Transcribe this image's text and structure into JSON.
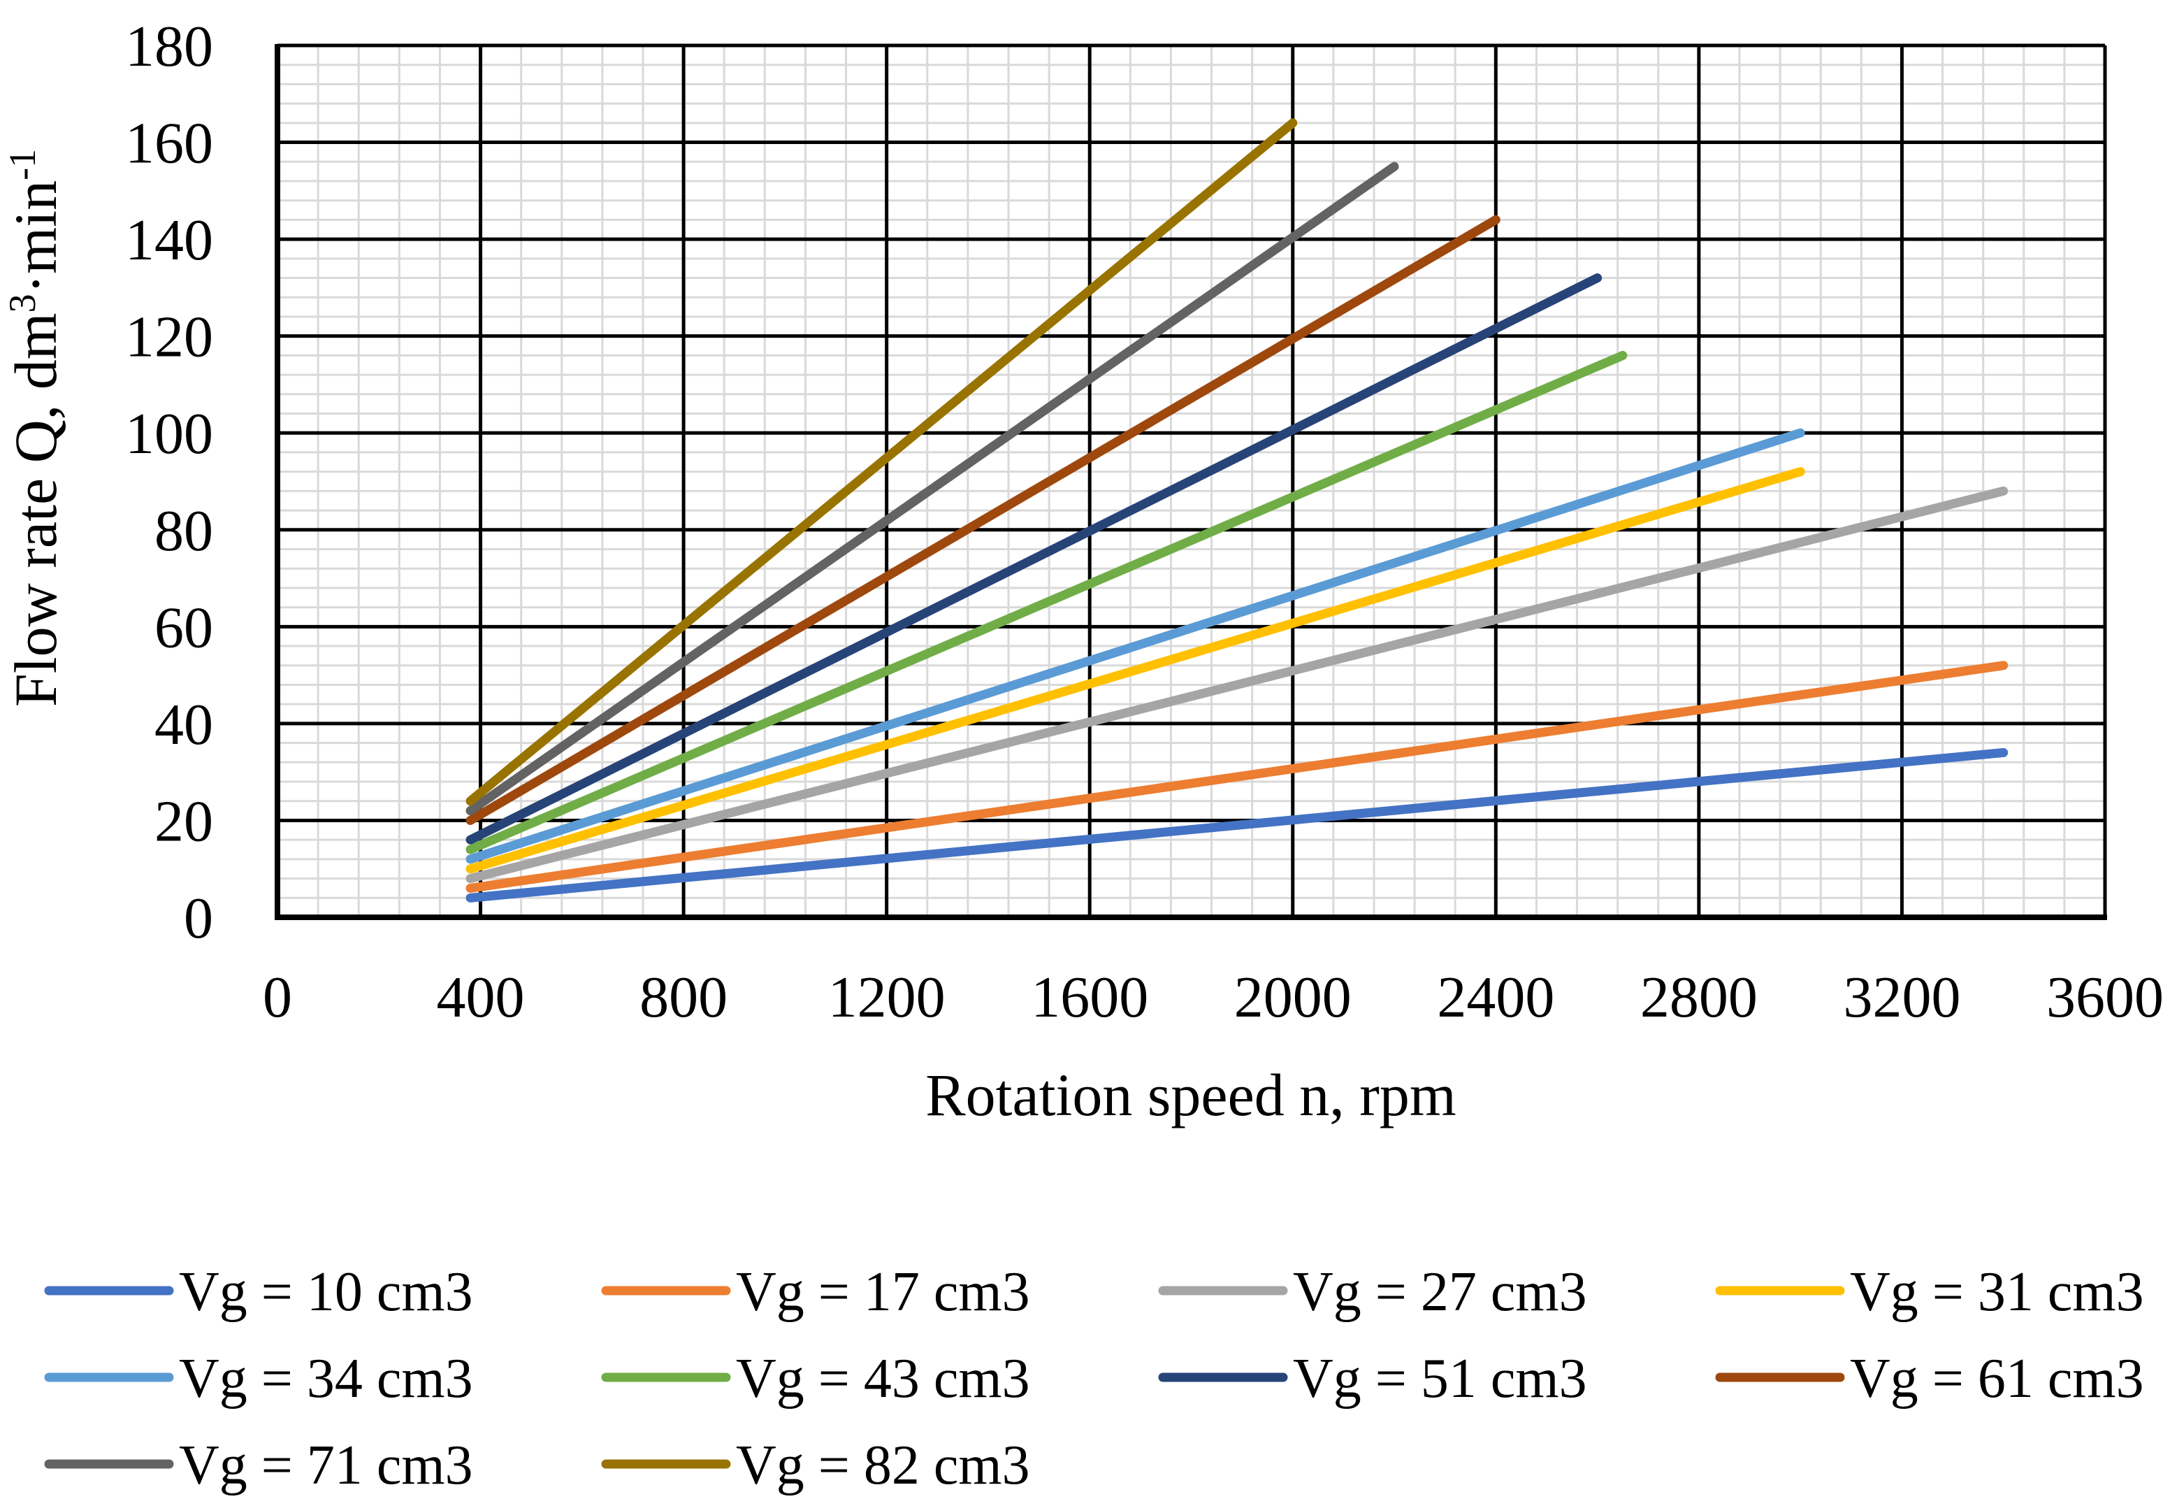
{
  "chart_data": {
    "type": "line",
    "title": "",
    "xlabel": "Rotation speed n, rpm",
    "ylabel_parts": {
      "before_sup1": "Flow rate Q, dm",
      "sup1": "3",
      "middle": "·min",
      "sup2": "-1"
    },
    "xlim": [
      0,
      3600
    ],
    "ylim": [
      0,
      180
    ],
    "x_ticks": [
      0,
      400,
      800,
      1200,
      1600,
      2000,
      2400,
      2800,
      3200,
      3600
    ],
    "x_tick_labels": [
      "0",
      "400",
      "800",
      "1200",
      "1600",
      "2000",
      "2400",
      "2800",
      "3200",
      "3600"
    ],
    "y_ticks": [
      0,
      20,
      40,
      60,
      80,
      100,
      120,
      140,
      160,
      180
    ],
    "y_tick_labels": [
      "0",
      "20",
      "40",
      "60",
      "80",
      "100",
      "120",
      "140",
      "160",
      "180"
    ],
    "minor_grid": true,
    "legend_position": "bottom",
    "series": [
      {
        "name": "Vg = 10 cm3",
        "color": "#4472C4",
        "x": [
          380,
          3400
        ],
        "y": [
          4,
          34
        ]
      },
      {
        "name": "Vg = 17 cm3",
        "color": "#ED7D31",
        "x": [
          380,
          3400
        ],
        "y": [
          6,
          52
        ]
      },
      {
        "name": "Vg = 27 cm3",
        "color": "#A5A5A5",
        "x": [
          380,
          3400
        ],
        "y": [
          8,
          88
        ]
      },
      {
        "name": "Vg = 31 cm3",
        "color": "#FFC000",
        "x": [
          380,
          3000
        ],
        "y": [
          10,
          92
        ]
      },
      {
        "name": "Vg = 34 cm3",
        "color": "#5B9BD5",
        "x": [
          380,
          3000
        ],
        "y": [
          12,
          100
        ]
      },
      {
        "name": "Vg = 43 cm3",
        "color": "#70AD47",
        "x": [
          380,
          2650
        ],
        "y": [
          14,
          116
        ]
      },
      {
        "name": "Vg = 51 cm3",
        "color": "#264478",
        "x": [
          380,
          2600
        ],
        "y": [
          16,
          132
        ]
      },
      {
        "name": "Vg = 61 cm3",
        "color": "#9E480E",
        "x": [
          380,
          2400
        ],
        "y": [
          20,
          144
        ]
      },
      {
        "name": "Vg = 71 cm3",
        "color": "#636363",
        "x": [
          380,
          2200
        ],
        "y": [
          22,
          155
        ]
      },
      {
        "name": "Vg = 82 cm3",
        "color": "#997300",
        "x": [
          380,
          2000
        ],
        "y": [
          24,
          164
        ]
      }
    ]
  }
}
